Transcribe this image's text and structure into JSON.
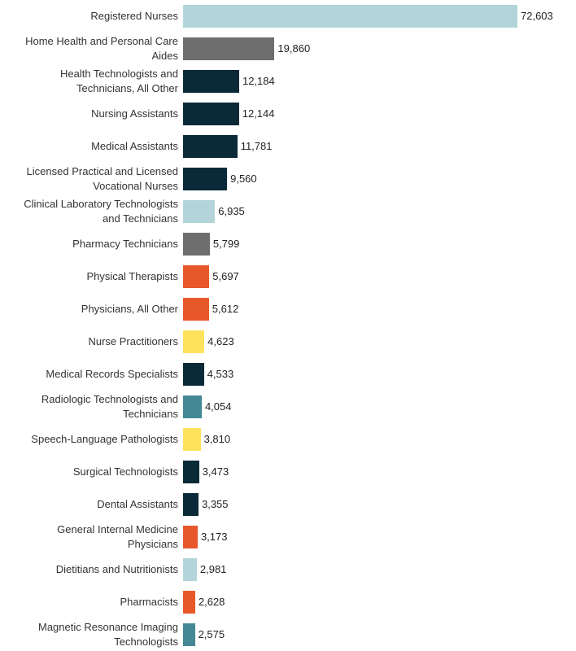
{
  "chart_data": {
    "type": "bar",
    "orientation": "horizontal",
    "categories": [
      "Registered Nurses",
      "Home Health and Personal Care Aides",
      "Health Technologists and Technicians, All Other",
      "Nursing Assistants",
      "Medical Assistants",
      "Licensed Practical and Licensed Vocational Nurses",
      "Clinical Laboratory Technologists and Technicians",
      "Pharmacy Technicians",
      "Physical Therapists",
      "Physicians, All Other",
      "Nurse Practitioners",
      "Medical Records Specialists",
      "Radiologic Technologists and Technicians",
      "Speech-Language Pathologists",
      "Surgical Technologists",
      "Dental Assistants",
      "General Internal Medicine Physicians",
      "Dietitians and Nutritionists",
      "Pharmacists",
      "Magnetic Resonance Imaging Technologists"
    ],
    "values": [
      72603,
      19860,
      12184,
      12144,
      11781,
      9560,
      6935,
      5799,
      5697,
      5612,
      4623,
      4533,
      4054,
      3810,
      3473,
      3355,
      3173,
      2981,
      2628,
      2575
    ],
    "value_labels": [
      "72,603",
      "19,860",
      "12,184",
      "12,144",
      "11,781",
      "9,560",
      "6,935",
      "5,799",
      "5,697",
      "5,612",
      "4,623",
      "4,533",
      "4,054",
      "3,810",
      "3,473",
      "3,355",
      "3,173",
      "2,981",
      "2,628",
      "2,575"
    ],
    "colors": [
      "#b3d5da",
      "#6e6e6e",
      "#0b2a38",
      "#0b2a38",
      "#0b2a38",
      "#0b2a38",
      "#b3d5da",
      "#6e6e6e",
      "#e8572a",
      "#e8572a",
      "#fde35c",
      "#0b2a38",
      "#448895",
      "#fde35c",
      "#0b2a38",
      "#0b2a38",
      "#e8572a",
      "#b3d5da",
      "#e8572a",
      "#448895"
    ]
  }
}
